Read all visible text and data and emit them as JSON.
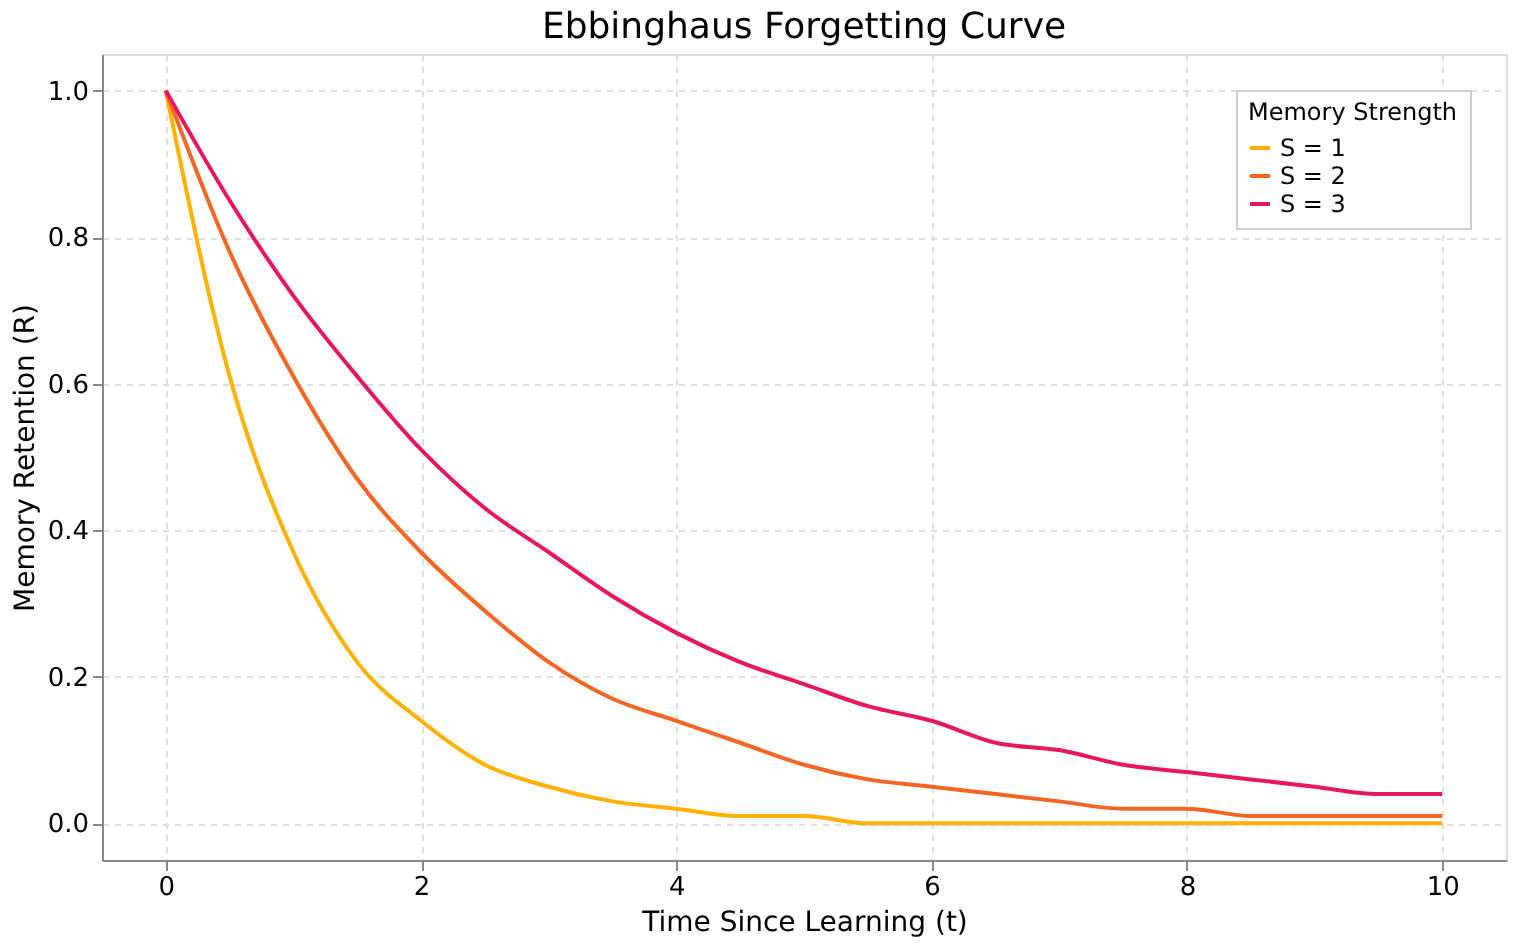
{
  "chart_data": {
    "type": "line",
    "title": "Ebbinghaus Forgetting Curve",
    "xlabel": "Time Since Learning (t)",
    "ylabel": "Memory Retention (R)",
    "legend_title": "Memory Strength",
    "x": [
      0,
      0.5,
      1,
      1.5,
      2,
      2.5,
      3,
      3.5,
      4,
      4.5,
      5,
      5.5,
      6,
      6.5,
      7,
      7.5,
      8,
      8.5,
      9,
      9.5,
      10
    ],
    "series": [
      {
        "name": "S = 1",
        "color": "#ffb000",
        "values": [
          1.0,
          0.61,
          0.37,
          0.22,
          0.14,
          0.08,
          0.05,
          0.03,
          0.02,
          0.01,
          0.01,
          0.0,
          0.0,
          0.0,
          0.0,
          0.0,
          0.0,
          0.0,
          0.0,
          0.0,
          0.0
        ]
      },
      {
        "name": "S = 2",
        "color": "#f26522",
        "values": [
          1.0,
          0.78,
          0.61,
          0.47,
          0.37,
          0.29,
          0.22,
          0.17,
          0.14,
          0.11,
          0.08,
          0.06,
          0.05,
          0.04,
          0.03,
          0.02,
          0.02,
          0.01,
          0.01,
          0.01,
          0.01
        ]
      },
      {
        "name": "S = 3",
        "color": "#e8175d",
        "values": [
          1.0,
          0.85,
          0.72,
          0.61,
          0.51,
          0.43,
          0.37,
          0.31,
          0.26,
          0.22,
          0.19,
          0.16,
          0.14,
          0.11,
          0.1,
          0.08,
          0.07,
          0.06,
          0.05,
          0.04,
          0.04
        ]
      }
    ],
    "xlim": [
      -0.5,
      10.5
    ],
    "xticks": [
      0,
      2,
      4,
      6,
      8,
      10
    ],
    "ylim": [
      -0.05,
      1.05
    ],
    "yticks": [
      {
        "value": 0,
        "label": "0.0"
      },
      0.2,
      0.4,
      0.6,
      0.8,
      {
        "value": 1,
        "label": "1.0"
      }
    ],
    "grid": true,
    "legend": "top right",
    "marker": "none",
    "line_style": "solid"
  }
}
